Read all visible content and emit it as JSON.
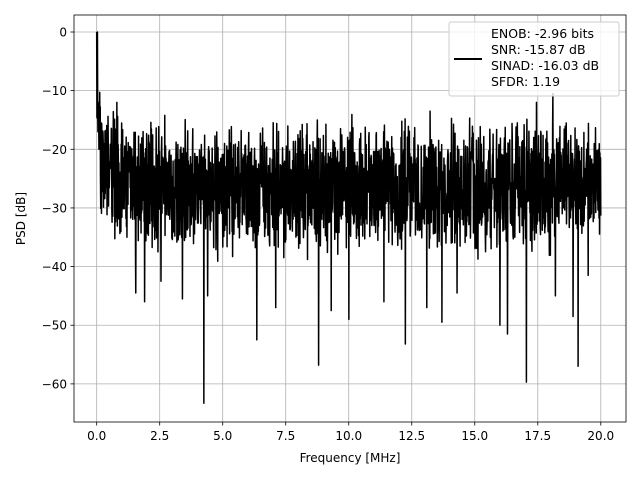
{
  "chart_data": {
    "type": "line",
    "title": "",
    "xlabel": "Frequency [MHz]",
    "ylabel": "PSD [dB]",
    "xlim": [
      -0.9,
      21.0
    ],
    "ylim": [
      -66.5,
      2.9
    ],
    "xticks": [
      0.0,
      2.5,
      5.0,
      7.5,
      10.0,
      12.5,
      15.0,
      17.5,
      20.0
    ],
    "xtick_labels": [
      "0.0",
      "2.5",
      "5.0",
      "7.5",
      "10.0",
      "12.5",
      "15.0",
      "17.5",
      "20.0"
    ],
    "yticks": [
      0,
      -10,
      -20,
      -30,
      -40,
      -50,
      -60
    ],
    "ytick_labels": [
      "0",
      "−10",
      "−20",
      "−30",
      "−40",
      "−50",
      "−60"
    ],
    "grid": true,
    "legend_position": "top-right",
    "series": [
      {
        "name": "ENOB: -2.96 bits\nSNR: -15.87 dB\nSINAD: -16.03 dB\nSFDR: 1.19",
        "legend_lines": [
          "ENOB: -2.96 bits",
          "SNR: -15.87 dB",
          "SINAD: -16.03 dB",
          "SFDR: 1.19"
        ],
        "color": "#000000",
        "x_range": [
          0.0,
          20.0
        ],
        "num_points": 2000,
        "envelope": {
          "x": [
            0.0,
            0.1,
            0.5,
            1.0,
            2.0,
            5.0,
            10.0,
            15.0,
            17.5,
            20.0
          ],
          "upper": [
            0.0,
            -10.0,
            -13.0,
            -13.0,
            -13.0,
            -13.5,
            -13.0,
            -13.0,
            -12.0,
            -14.0
          ],
          "lower": [
            -20.0,
            -33.0,
            -37.0,
            -38.0,
            -39.0,
            -40.0,
            -40.0,
            -40.0,
            -40.0,
            -37.0
          ]
        },
        "spikes": [
          {
            "x": 0.03,
            "y": 0.0
          },
          {
            "x": 0.12,
            "y": -10.3
          },
          {
            "x": 1.55,
            "y": -44.5
          },
          {
            "x": 1.9,
            "y": -46.0
          },
          {
            "x": 2.55,
            "y": -42.5
          },
          {
            "x": 3.4,
            "y": -45.5
          },
          {
            "x": 4.25,
            "y": -63.3
          },
          {
            "x": 4.4,
            "y": -45.0
          },
          {
            "x": 6.35,
            "y": -52.5
          },
          {
            "x": 7.1,
            "y": -47.0
          },
          {
            "x": 8.8,
            "y": -56.8
          },
          {
            "x": 9.3,
            "y": -47.5
          },
          {
            "x": 10.0,
            "y": -49.0
          },
          {
            "x": 11.4,
            "y": -46.0
          },
          {
            "x": 12.25,
            "y": -53.2
          },
          {
            "x": 13.1,
            "y": -47.0
          },
          {
            "x": 13.7,
            "y": -49.5
          },
          {
            "x": 14.3,
            "y": -44.5
          },
          {
            "x": 16.0,
            "y": -50.0
          },
          {
            "x": 16.3,
            "y": -51.5
          },
          {
            "x": 17.05,
            "y": -59.7
          },
          {
            "x": 18.2,
            "y": -45.0
          },
          {
            "x": 18.9,
            "y": -48.5
          },
          {
            "x": 19.1,
            "y": -57.0
          },
          {
            "x": 19.5,
            "y": -41.5
          },
          {
            "x": 17.45,
            "y": -12.0
          },
          {
            "x": 18.1,
            "y": -10.5
          },
          {
            "x": 0.8,
            "y": -12.0
          }
        ]
      }
    ]
  }
}
